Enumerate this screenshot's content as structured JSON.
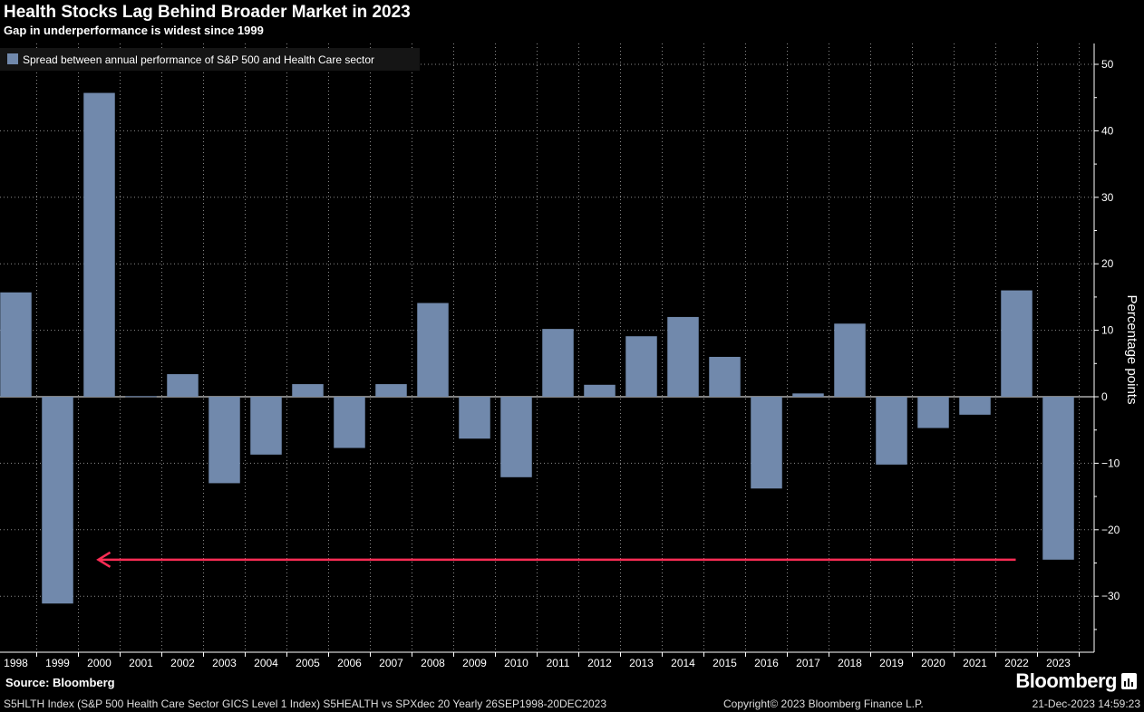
{
  "header": {
    "title": "Health Stocks Lag Behind Broader Market in 2023",
    "subtitle": "Gap in underperformance is widest since 1999"
  },
  "chart_data": {
    "type": "bar",
    "title": "Health Stocks Lag Behind Broader Market in 2023",
    "subtitle": "Gap in underperformance is widest since 1999",
    "xlabel": "",
    "ylabel": "Percentage points",
    "ylim": [
      -38,
      53
    ],
    "yticks": [
      50,
      40,
      30,
      20,
      10,
      0,
      -10,
      -20,
      -30
    ],
    "y_axis_side": "right",
    "grid": true,
    "legend_position": "top-left",
    "categories": [
      "1998",
      "1999",
      "2000",
      "2001",
      "2002",
      "2003",
      "2004",
      "2005",
      "2006",
      "2007",
      "2008",
      "2009",
      "2010",
      "2011",
      "2012",
      "2013",
      "2014",
      "2015",
      "2016",
      "2017",
      "2018",
      "2019",
      "2020",
      "2021",
      "2022",
      "2023"
    ],
    "series": [
      {
        "name": "Spread between annual performance of S&P 500 and Health Care sector",
        "color": "#7189ac",
        "values": [
          15.7,
          -31.1,
          45.7,
          0.1,
          3.4,
          -13.0,
          -8.7,
          1.9,
          -7.7,
          1.9,
          14.1,
          -6.3,
          -12.1,
          10.2,
          1.8,
          9.1,
          12.0,
          6.0,
          -13.8,
          0.5,
          11.0,
          -10.2,
          -4.7,
          -2.7,
          16.0,
          -24.5
        ]
      }
    ],
    "annotations": [
      {
        "type": "arrow",
        "color": "#ff2d55",
        "y": -24.5,
        "from_category": "2022",
        "to_category": "2000",
        "direction": "left"
      }
    ]
  },
  "footer": {
    "source": "Source: Bloomberg",
    "logo": "Bloomberg",
    "ticker": "S5HLTH Index (S&P 500 Health Care Sector GICS Level 1 Index) S5HEALTH vs SPXdec 20  Yearly 26SEP1998-20DEC2023",
    "copyright": "Copyright© 2023 Bloomberg Finance L.P.",
    "timestamp": "21-Dec-2023 14:59:23"
  },
  "colors": {
    "background": "#000000",
    "bar": "#7189ac",
    "grid": "#8a8a8a",
    "arrow": "#ff2d55"
  }
}
